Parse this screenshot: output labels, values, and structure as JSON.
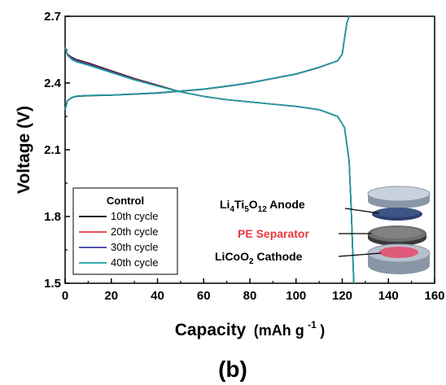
{
  "chart_data": {
    "type": "line",
    "xlabel": "Capacity (mAh g-1)",
    "xlabel_parts": {
      "main": "Capacity",
      "unit_open": "(mAh g",
      "unit_exp": "-1",
      "unit_close": ")"
    },
    "ylabel": "Voltage (V)",
    "xlim": [
      0,
      160
    ],
    "ylim": [
      1.5,
      2.7
    ],
    "x_ticks": [
      "0",
      "20",
      "40",
      "60",
      "80",
      "100",
      "120",
      "140",
      "160"
    ],
    "y_ticks": [
      "1.5",
      "1.8",
      "2.1",
      "2.4",
      "2.7"
    ],
    "x_tick_values": [
      0,
      20,
      40,
      60,
      80,
      100,
      120,
      140,
      160
    ],
    "y_tick_values": [
      1.5,
      1.8,
      2.1,
      2.4,
      2.7
    ],
    "grid": false,
    "legend": {
      "title": "Control",
      "placement": "bottom-left"
    },
    "series": [
      {
        "name": "10th cycle",
        "color": "#000000",
        "charge": {
          "x": [
            0,
            1,
            3,
            5,
            10,
            20,
            30,
            40,
            50,
            60,
            70,
            80,
            90,
            100,
            110,
            118,
            120,
            121,
            122,
            123
          ],
          "y": [
            2.28,
            2.32,
            2.335,
            2.34,
            2.343,
            2.345,
            2.35,
            2.355,
            2.363,
            2.372,
            2.385,
            2.4,
            2.42,
            2.44,
            2.47,
            2.5,
            2.53,
            2.6,
            2.67,
            2.7
          ]
        },
        "discharge": {
          "x": [
            0,
            1,
            3,
            5,
            10,
            20,
            30,
            40,
            50,
            60,
            70,
            80,
            90,
            100,
            110,
            118,
            121,
            123,
            124,
            125
          ],
          "y": [
            2.56,
            2.53,
            2.515,
            2.505,
            2.49,
            2.455,
            2.42,
            2.39,
            2.36,
            2.34,
            2.325,
            2.315,
            2.305,
            2.295,
            2.28,
            2.25,
            2.2,
            2.05,
            1.8,
            1.5
          ]
        }
      },
      {
        "name": "20th cycle",
        "color": "#e8383d",
        "charge": {
          "x": [
            0,
            1,
            3,
            5,
            10,
            20,
            30,
            40,
            50,
            60,
            70,
            80,
            90,
            100,
            110,
            118,
            120,
            121,
            122,
            123
          ],
          "y": [
            2.28,
            2.32,
            2.336,
            2.341,
            2.344,
            2.346,
            2.351,
            2.356,
            2.364,
            2.373,
            2.386,
            2.401,
            2.421,
            2.441,
            2.471,
            2.5,
            2.53,
            2.6,
            2.67,
            2.7
          ]
        },
        "discharge": {
          "x": [
            0,
            1,
            3,
            5,
            10,
            20,
            30,
            40,
            50,
            60,
            70,
            80,
            90,
            100,
            110,
            118,
            121,
            123,
            124,
            125
          ],
          "y": [
            2.56,
            2.53,
            2.512,
            2.502,
            2.487,
            2.452,
            2.418,
            2.388,
            2.36,
            2.34,
            2.325,
            2.315,
            2.305,
            2.295,
            2.28,
            2.25,
            2.2,
            2.05,
            1.8,
            1.5
          ]
        }
      },
      {
        "name": "30th cycle",
        "color": "#3a3aa0",
        "charge": {
          "x": [
            0,
            1,
            3,
            5,
            10,
            20,
            30,
            40,
            50,
            60,
            70,
            80,
            90,
            100,
            110,
            118,
            120,
            121,
            122,
            123
          ],
          "y": [
            2.28,
            2.32,
            2.336,
            2.341,
            2.344,
            2.346,
            2.351,
            2.356,
            2.364,
            2.373,
            2.386,
            2.401,
            2.421,
            2.441,
            2.471,
            2.5,
            2.53,
            2.6,
            2.67,
            2.7
          ]
        },
        "discharge": {
          "x": [
            0,
            1,
            3,
            5,
            10,
            20,
            30,
            40,
            50,
            60,
            70,
            80,
            90,
            100,
            110,
            118,
            121,
            123,
            124,
            125
          ],
          "y": [
            2.56,
            2.528,
            2.51,
            2.5,
            2.485,
            2.45,
            2.416,
            2.387,
            2.36,
            2.34,
            2.325,
            2.315,
            2.305,
            2.295,
            2.28,
            2.25,
            2.2,
            2.05,
            1.8,
            1.5
          ]
        }
      },
      {
        "name": "40th cycle",
        "color": "#1aa0a0",
        "charge": {
          "x": [
            0,
            1,
            3,
            5,
            10,
            20,
            30,
            40,
            50,
            60,
            70,
            80,
            90,
            100,
            110,
            118,
            120,
            121,
            122,
            123
          ],
          "y": [
            2.28,
            2.32,
            2.336,
            2.341,
            2.344,
            2.346,
            2.351,
            2.356,
            2.364,
            2.373,
            2.386,
            2.401,
            2.421,
            2.441,
            2.471,
            2.5,
            2.53,
            2.6,
            2.67,
            2.7
          ]
        },
        "discharge": {
          "x": [
            0,
            1,
            3,
            5,
            10,
            20,
            30,
            40,
            50,
            60,
            70,
            80,
            90,
            100,
            110,
            118,
            121,
            123,
            124,
            125
          ],
          "y": [
            2.56,
            2.525,
            2.505,
            2.495,
            2.48,
            2.447,
            2.414,
            2.386,
            2.36,
            2.34,
            2.325,
            2.315,
            2.305,
            2.295,
            2.28,
            2.25,
            2.2,
            2.05,
            1.8,
            1.5
          ]
        }
      }
    ],
    "inset": {
      "anode": {
        "pre": "Li",
        "sub1": "4",
        "mid1": "Ti",
        "sub2": "5",
        "mid2": "O",
        "sub3": "12",
        "post": " Anode"
      },
      "separator": "PE Separator",
      "cathode": {
        "pre": "LiCoO",
        "sub": "2",
        "post": " Cathode"
      },
      "separator_color": "#e8383d"
    },
    "panel_label": "(b)"
  }
}
